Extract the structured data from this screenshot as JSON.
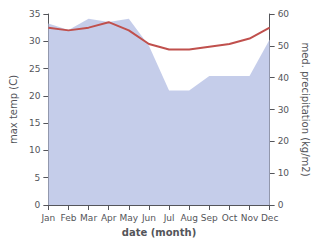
{
  "chart_data": {
    "type": "line",
    "xlabel": "date (month)",
    "ylabel": "max temp (C)",
    "y2label": "med. precipitation (kg/m2)",
    "categories": [
      "Jan",
      "Feb",
      "Mar",
      "Apr",
      "May",
      "Jun",
      "Jul",
      "Aug",
      "Sep",
      "Oct",
      "Nov",
      "Dec"
    ],
    "series": [
      {
        "type": "area",
        "color": "#bfc8e8",
        "axis": "y2",
        "values": [
          57.0,
          55.0,
          58.5,
          57.5,
          58.5,
          50.0,
          36.0,
          36.0,
          40.5,
          40.5,
          40.5,
          52.0
        ]
      },
      {
        "type": "line",
        "color": "#c0504d",
        "values": [
          32.5,
          32.0,
          32.5,
          33.5,
          32.0,
          29.5,
          28.5,
          28.5,
          29.0,
          29.5,
          30.5,
          32.5
        ]
      }
    ],
    "ylim": [
      0,
      35
    ],
    "yticks": [
      0,
      5,
      10,
      15,
      20,
      25,
      30,
      35
    ],
    "y2lim": [
      0,
      60
    ],
    "y2ticks": [
      0,
      10,
      20,
      30,
      40,
      50,
      60
    ],
    "grid": false
  }
}
